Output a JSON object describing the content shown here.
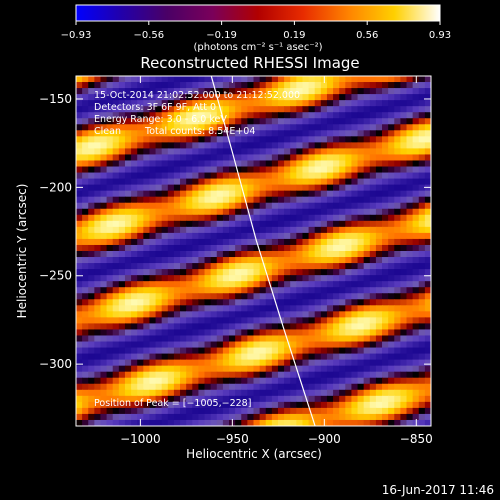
{
  "colorbar": {
    "tick_labels": [
      "−0.93",
      "−0.56",
      "−0.19",
      "0.19",
      "0.56",
      "0.93"
    ],
    "units_label": "(photons cm⁻² s⁻¹ asec⁻²)",
    "range": [
      -0.93,
      0.93
    ],
    "palette": [
      "#0000ff",
      "#2200aa",
      "#4a0066",
      "#7a005a",
      "#b10000",
      "#e82c00",
      "#ff8400",
      "#ffd000",
      "#ffffff"
    ]
  },
  "plot": {
    "title": "Reconstructed RHESSI Image",
    "xlabel": "Heliocentric X (arcsec)",
    "ylabel": "Heliocentric Y (arcsec)",
    "x_range": [
      -1035,
      -842
    ],
    "y_range": [
      -335,
      -137
    ],
    "x_ticks": [
      {
        "value": -1000,
        "label": "−1000"
      },
      {
        "value": -950,
        "label": "−950"
      },
      {
        "value": -900,
        "label": "−900"
      },
      {
        "value": -850,
        "label": "−850"
      }
    ],
    "y_ticks": [
      {
        "value": -150,
        "label": "−150"
      },
      {
        "value": -200,
        "label": "−200"
      },
      {
        "value": -250,
        "label": "−250"
      },
      {
        "value": -300,
        "label": "−300"
      }
    ],
    "limb_points": [
      [
        -962,
        -135
      ],
      [
        -950,
        -180
      ],
      [
        -937,
        -230
      ],
      [
        -922,
        -280
      ],
      [
        -905,
        -335
      ]
    ]
  },
  "info": {
    "time_range": "15-Oct-2014 21:02:52.000 to 21:12:52.000",
    "detectors": "Detectors: 3F 6F 9F, Att 0",
    "energy_range": "Energy Range: 3.0 - 6.0 keV",
    "method": "Clean",
    "total_counts": "Total counts: 8.54E+04",
    "peak": "Position of Peak = [−1005,−228]"
  },
  "footer": {
    "date": "16-Jun-2017 11:46"
  }
}
